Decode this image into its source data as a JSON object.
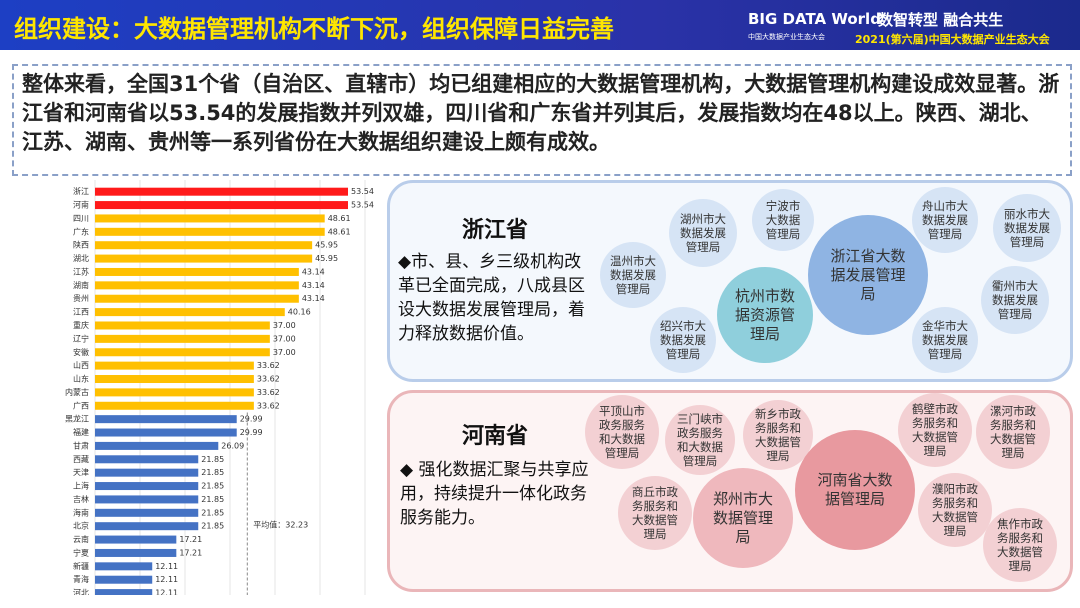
{
  "header": {
    "title": "组织建设：大数据管理机构不断下沉，组织保障日益完善",
    "logo": "BIG DATA World",
    "logo_sub": "中国大数据产业生态大会",
    "slogan": "数智转型 融合共生",
    "event": "2021(第六届)中国大数据产业生态大会"
  },
  "intro": "整体来看，全国31个省（自治区、直辖市）均已组建相应的大数据管理机构，大数据管理机构建设成效显著。浙江省和河南省以53.54的发展指数并列双雄，四川省和广东省并列其后，发展指数均在48以上。陕西、湖北、江苏、湖南、贵州等一系列省份在大数据组织建设上颇有成效。",
  "chart_data": {
    "type": "bar",
    "orientation": "horizontal",
    "categories": [
      "浙江",
      "河南",
      "四川",
      "广东",
      "陕西",
      "湖北",
      "江苏",
      "湖南",
      "贵州",
      "江西",
      "重庆",
      "辽宁",
      "安徽",
      "山西",
      "山东",
      "内蒙古",
      "广西",
      "黑龙江",
      "福建",
      "甘肃",
      "西藏",
      "天津",
      "上海",
      "吉林",
      "海南",
      "北京",
      "云南",
      "宁夏",
      "新疆",
      "青海",
      "河北"
    ],
    "values": [
      53.54,
      53.54,
      48.61,
      48.61,
      45.95,
      45.95,
      43.14,
      43.14,
      43.14,
      40.16,
      37,
      37,
      37,
      33.62,
      33.62,
      33.62,
      33.62,
      29.99,
      29.99,
      26.09,
      21.85,
      21.85,
      21.85,
      21.85,
      21.85,
      21.85,
      17.21,
      17.21,
      12.11,
      12.11,
      12.11
    ],
    "value_labels": [
      "53.54",
      "53.54",
      "48.61",
      "48.61",
      "45.95",
      "45.95",
      "43.14",
      "43.14",
      "43.14",
      "40.16",
      "37.00",
      "37.00",
      "37.00",
      "33.62",
      "33.62",
      "33.62",
      "33.62",
      "29.99",
      "29.99",
      "26.09",
      "21.85",
      "21.85",
      "21.85",
      "21.85",
      "21.85",
      "21.85",
      "17.21",
      "17.21",
      "12.11",
      "12.11",
      "12.11"
    ],
    "colors": [
      "#ff1a1a",
      "#ff1a1a",
      "#ffc000",
      "#ffc000",
      "#ffc000",
      "#ffc000",
      "#ffc000",
      "#ffc000",
      "#ffc000",
      "#ffc000",
      "#ffc000",
      "#ffc000",
      "#ffc000",
      "#ffc000",
      "#ffc000",
      "#ffc000",
      "#ffc000",
      "#4472c4",
      "#4472c4",
      "#4472c4",
      "#4472c4",
      "#4472c4",
      "#4472c4",
      "#4472c4",
      "#4472c4",
      "#4472c4",
      "#4472c4",
      "#4472c4",
      "#4472c4",
      "#4472c4",
      "#4472c4"
    ],
    "average": {
      "value": 32.23,
      "label": "平均值：32.23"
    },
    "grid": true
  },
  "zhejiang": {
    "title": "浙江省",
    "text": "◆市、县、乡三级机构改革已全面完成，八成县区设大数据发展管理局，着力释放数据价值。",
    "nodes": [
      "温州市大数据发展管理局",
      "湖州市大数据发展管理局",
      "宁波市大数据管理局",
      "杭州市数据资源管理局",
      "浙江省大数据发展管理局",
      "绍兴市大数据发展管理局",
      "舟山市大数据发展管理局",
      "丽水市大数据发展管理局",
      "衢州市大数据发展管理局",
      "金华市大数据发展管理局"
    ]
  },
  "henan": {
    "title": "河南省",
    "text": "◆ 强化数据汇聚与共享应用，持续提升一体化政务服务能力。",
    "nodes": [
      "平顶山市政务服务和大数据管理局",
      "三门峡市政务服务和大数据管理局",
      "新乡市政务服务和大数据管理局",
      "河南省大数据管理局",
      "郑州市大数据管理局",
      "商丘市政务服务和大数据管理局",
      "鹤壁市政务服务和大数据管理局",
      "漯河市政务服务和大数据管理局",
      "濮阳市政务服务和大数据管理局",
      "焦作市政务服务和大数据管理局"
    ]
  }
}
